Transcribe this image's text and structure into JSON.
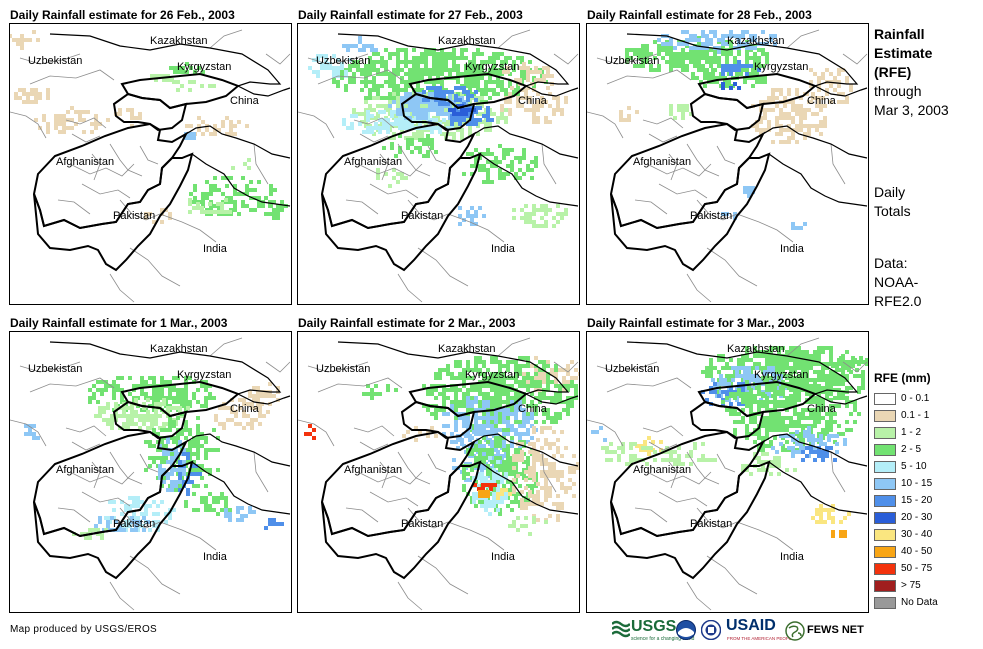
{
  "panels": [
    {
      "title": "Daily Rainfall estimate for 26 Feb., 2003"
    },
    {
      "title": "Daily Rainfall estimate for 27 Feb., 2003"
    },
    {
      "title": "Daily Rainfall estimate for 28 Feb., 2003"
    },
    {
      "title": "Daily Rainfall estimate for 1 Mar., 2003"
    },
    {
      "title": "Daily Rainfall estimate for 2 Mar., 2003"
    },
    {
      "title": "Daily Rainfall estimate for 3 Mar., 2003"
    }
  ],
  "map_labels": {
    "kazakhstan": "Kazakhstan",
    "uzbekistan": "Uzbekistan",
    "kyrgyzstan": "Kyrgyzstan",
    "china": "China",
    "afghanistan": "Afghanistan",
    "pakistan": "Pakistan",
    "india": "India"
  },
  "sidebar": {
    "title_line1": "Rainfall",
    "title_line2": "Estimate",
    "title_line3": "(RFE)",
    "through": "through",
    "date": "Mar 3, 2003",
    "daily1": "Daily",
    "daily2": "Totals",
    "data1": "Data:",
    "data2": "NOAA-",
    "data3": "RFE2.0"
  },
  "legend": {
    "title": "RFE (mm)",
    "items": [
      {
        "label": "0 - 0.1",
        "color": "#ffffff"
      },
      {
        "label": "0.1 - 1",
        "color": "#ead7b5"
      },
      {
        "label": "1 - 2",
        "color": "#b8f2a8"
      },
      {
        "label": "2 - 5",
        "color": "#72e272"
      },
      {
        "label": "5 - 10",
        "color": "#b4eef8"
      },
      {
        "label": "10 - 15",
        "color": "#8ec7f5"
      },
      {
        "label": "15 - 20",
        "color": "#4f8fe9"
      },
      {
        "label": "20 - 30",
        "color": "#2a5ed8"
      },
      {
        "label": "30 - 40",
        "color": "#fae680"
      },
      {
        "label": "40 - 50",
        "color": "#f8a515"
      },
      {
        "label": "50 - 75",
        "color": "#f3320c"
      },
      {
        "label": "> 75",
        "color": "#a01e1e"
      },
      {
        "label": "No Data",
        "color": "#999999"
      }
    ]
  },
  "footer": {
    "credit": "Map produced by USGS/EROS",
    "usgs": "USGS",
    "usgs_tagline": "science for a changing world",
    "usaid": "USAID",
    "usaid_tagline": "FROM THE AMERICAN PEOPLE",
    "fews": "FEWS NET"
  }
}
